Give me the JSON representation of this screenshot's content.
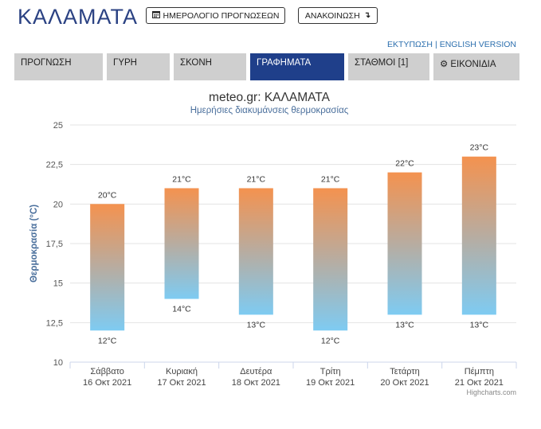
{
  "header": {
    "city": "ΚΑΛΑΜΑΤΑ",
    "forecast_calendar_button": "ΗΜΕΡΟΛΟΓΙΟ ΠΡΟΓΝΩΣΕΩΝ",
    "announcement_button": "ΑΝΑΚΟΙΝΩΣΗ",
    "print_link": "ΕΚΤΥΠΩΣΗ",
    "link_separator": "|",
    "english_link": "ENGLISH VERSION"
  },
  "tabs": [
    {
      "label": "ΠΡΟΓΝΩΣΗ",
      "active": false
    },
    {
      "label": "ΓΥΡΗ",
      "active": false
    },
    {
      "label": "ΣΚΟΝΗ",
      "active": false
    },
    {
      "label": "ΓΡΑΦΗΜΑΤΑ",
      "active": true
    },
    {
      "label": "ΣΤΑΘΜΟΙ [1]",
      "active": false
    },
    {
      "label": "ΕΙΚΟΝΙΔΙΑ",
      "active": false,
      "icon": "gear-icon"
    }
  ],
  "colors": {
    "title_blue": "#2b4283",
    "active_tab": "#1f3f8a",
    "bar_top": "#f4924f",
    "bar_bottom": "#7ecbf2"
  },
  "chart_data": {
    "type": "bar",
    "title": "meteo.gr: ΚΑΛΑΜΑΤΑ",
    "subtitle": "Ημερήσιες διακυμάνσεις θερμοκρασίας",
    "ylabel": "Θερμοκρασία (°C)",
    "ylim": [
      10,
      25
    ],
    "yticks": [
      "10",
      "12,5",
      "15",
      "17,5",
      "20",
      "22,5",
      "25"
    ],
    "categories": [
      {
        "day": "Σάββατο",
        "date": "16 Οκτ 2021"
      },
      {
        "day": "Κυριακή",
        "date": "17 Οκτ 2021"
      },
      {
        "day": "Δευτέρα",
        "date": "18 Οκτ 2021"
      },
      {
        "day": "Τρίτη",
        "date": "19 Οκτ 2021"
      },
      {
        "day": "Τετάρτη",
        "date": "20 Οκτ 2021"
      },
      {
        "day": "Πέμπτη",
        "date": "21 Οκτ 2021"
      }
    ],
    "min": [
      12,
      14,
      13,
      12,
      13,
      13
    ],
    "max": [
      20,
      21,
      21,
      21,
      22,
      23
    ],
    "unit": "°C",
    "grid": true,
    "credit": "Highcharts.com"
  }
}
